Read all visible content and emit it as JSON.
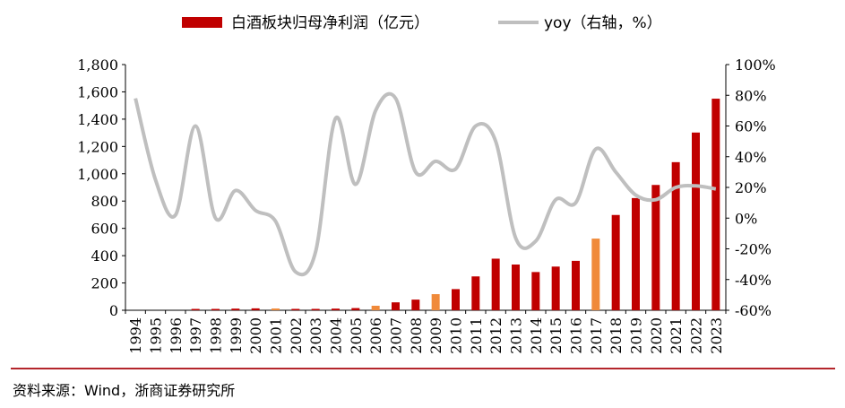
{
  "chart_data": {
    "type": "bar+line",
    "categories": [
      "1994",
      "1995",
      "1996",
      "1997",
      "1998",
      "1999",
      "2000",
      "2001",
      "2002",
      "2003",
      "2004",
      "2005",
      "2006",
      "2007",
      "2008",
      "2009",
      "2010",
      "2011",
      "2012",
      "2013",
      "2014",
      "2015",
      "2016",
      "2017",
      "2018",
      "2019",
      "2020",
      "2021",
      "2022",
      "2023"
    ],
    "series": [
      {
        "name": "白酒板块归母净利润（亿元）",
        "type": "bar",
        "axis": "left",
        "color": "#c00000",
        "highlight_color": "#f08a3a",
        "highlight_years": [
          "2001",
          "2006",
          "2009",
          "2017"
        ],
        "values": [
          0,
          0,
          0,
          7,
          9,
          12,
          14,
          13,
          10,
          10,
          12,
          16,
          33,
          58,
          78,
          118,
          155,
          248,
          378,
          335,
          280,
          320,
          362,
          525,
          698,
          822,
          918,
          1085,
          1302,
          1550
        ]
      },
      {
        "name": "yoy（右轴，%）",
        "type": "line",
        "axis": "right",
        "color": "#bfbfbf",
        "values": [
          78,
          25,
          2,
          60,
          0,
          18,
          5,
          -2,
          -35,
          -22,
          65,
          22,
          70,
          78,
          30,
          37,
          32,
          60,
          50,
          -13,
          -15,
          12,
          10,
          45,
          30,
          15,
          12,
          20,
          21,
          19
        ]
      }
    ],
    "y_left": {
      "ylim": [
        0,
        1800
      ],
      "ticks": [
        "0",
        "200",
        "400",
        "600",
        "800",
        "1,000",
        "1,200",
        "1,400",
        "1,600",
        "1,800"
      ]
    },
    "y_right": {
      "ylim": [
        -60,
        100
      ],
      "ticks": [
        "-60%",
        "-40%",
        "-20%",
        "0%",
        "20%",
        "40%",
        "60%",
        "80%",
        "100%"
      ]
    },
    "legend_position": "top",
    "grid": false
  },
  "source_note": "资料来源：Wind，浙商证券研究所"
}
